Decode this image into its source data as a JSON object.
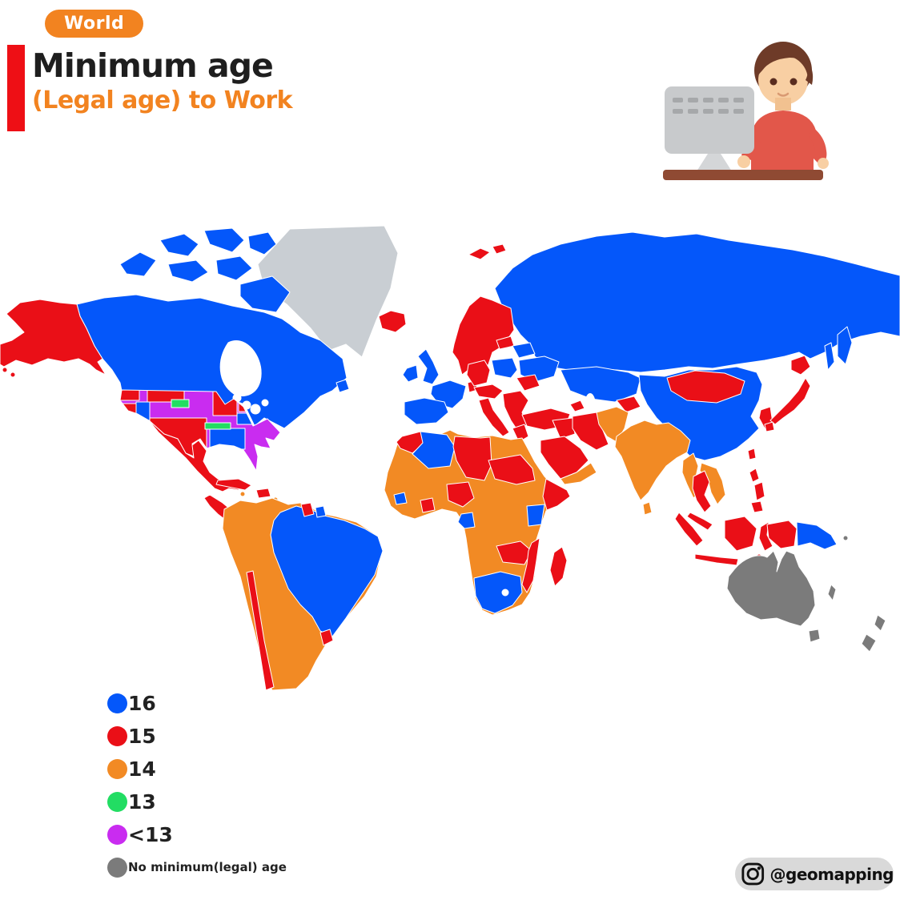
{
  "header": {
    "badge": "World",
    "title": "Minimum age",
    "subtitle": "(Legal age) to Work"
  },
  "footer": {
    "instagram_handle": "@geomapping"
  },
  "icons": {
    "instagram": "instagram-camera-glyph",
    "illustration": "boy-working-at-computer"
  },
  "colors": {
    "accent_orange": "#f28320",
    "title_black": "#1e1e1e",
    "side_bar_red": "#ee0f15",
    "pill_gray": "#d9d9d9"
  },
  "legend": {
    "items": [
      {
        "label": "16",
        "category": "16",
        "small": false
      },
      {
        "label": "15",
        "category": "15",
        "small": false
      },
      {
        "label": "14",
        "category": "14",
        "small": false
      },
      {
        "label": "13",
        "category": "13",
        "small": false
      },
      {
        "label": "<13",
        "category": "lt13",
        "small": false
      },
      {
        "label": "No minimum(legal) age",
        "category": "none",
        "small": true
      }
    ]
  },
  "map": {
    "categories": {
      "16": "#0457fa",
      "15": "#ea0f17",
      "14": "#f28a24",
      "13": "#22dd63",
      "lt13": "#c92cf0",
      "none": "#7b7b7b",
      "nodata": "#c9ced3"
    },
    "regions": {
      "greenland": "nodata",
      "canada": "16",
      "arctic_islands": "16",
      "newfoundland": "16",
      "alaska": "15",
      "aleutians": "15",
      "usa_base": "lt13",
      "usa_red": "15",
      "usa_blue": "16",
      "usa_green": "13",
      "mexico": "15",
      "central_america": "15",
      "cuba": "15",
      "hispaniola": "15",
      "jamaica": "14",
      "caribbean": "14",
      "south_america": "14",
      "brazil": "16",
      "chile": "15",
      "uruguay": "15",
      "guyana": "15",
      "french_guiana": "16",
      "iceland": "15",
      "uk": "16",
      "ireland": "16",
      "scandinavia": "15",
      "denmark": "15",
      "svalbard": "15",
      "baltics": "15",
      "belarus": "16",
      "poland": "16",
      "germany": "15",
      "france": "16",
      "iberia": "16",
      "czech_austria": "15",
      "italy": "15",
      "balkans": "15",
      "greece": "15",
      "ukraine": "16",
      "romania": "15",
      "russia": "16",
      "turkey": "15",
      "kazakhstan": "16",
      "uzbekistan": "15",
      "caucasus": "15",
      "mongolia": "15",
      "china": "16",
      "korea": "15",
      "japan": "15",
      "taiwan": "15",
      "iran": "15",
      "iraq_syria": "15",
      "saudi": "15",
      "yemen_oman": "14",
      "afghanistan_pakistan": "14",
      "india": "14",
      "sri_lanka": "14",
      "myanmar": "14",
      "thailand": "15",
      "indochina": "14",
      "malaysia": "15",
      "indonesia": "15",
      "philippines": "15",
      "west_papua": "15",
      "png": "16",
      "africa": "14",
      "morocco": "15",
      "algeria": "16",
      "libya": "15",
      "sudan": "15",
      "nigeria": "15",
      "ghana": "15",
      "guinea": "16",
      "somalia": "15",
      "kenya": "16",
      "gabon": "16",
      "zambia": "15",
      "mozambique": "15",
      "madagascar": "15",
      "south_africa": "16",
      "australia": "none",
      "tasmania": "none",
      "new_zealand": "none",
      "new_caledonia": "none",
      "solomon": "none"
    }
  }
}
